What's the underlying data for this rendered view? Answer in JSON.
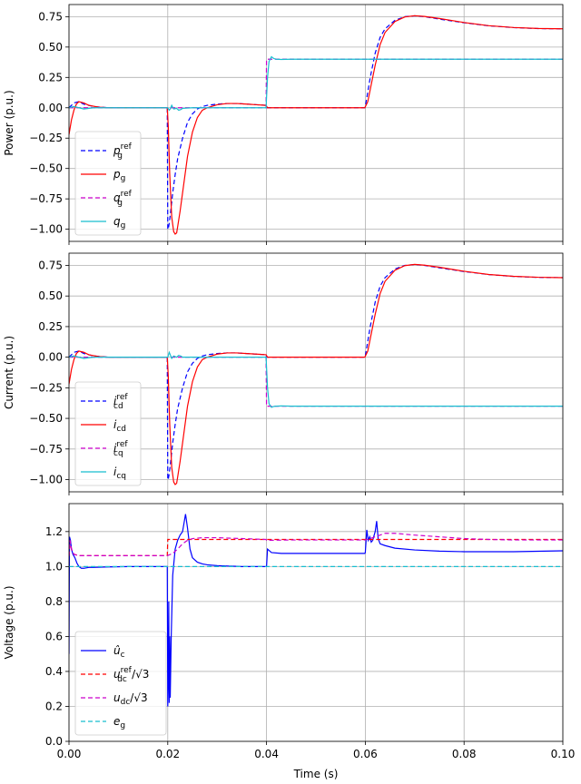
{
  "chart_data": [
    {
      "type": "line",
      "ylabel": "Power (p.u.)",
      "xlabel": "",
      "xlim": [
        0,
        0.1
      ],
      "ylim": [
        -1.1,
        0.85
      ],
      "xticks": [
        0,
        0.02,
        0.04,
        0.06,
        0.08,
        0.1
      ],
      "xtick_labels": [
        "",
        "",
        "",
        "",
        "",
        ""
      ],
      "yticks": [
        -1.0,
        -0.75,
        -0.5,
        -0.25,
        0.0,
        0.25,
        0.5,
        0.75
      ],
      "ytick_labels": [
        "−1.00",
        "−0.75",
        "−0.50",
        "−0.25",
        "0.00",
        "0.25",
        "0.50",
        "0.75"
      ],
      "grid": true,
      "legend_position": "lower-left",
      "series": [
        {
          "name": "p_g^ref",
          "label_main": "p",
          "label_sub": "g",
          "label_sup": "ref",
          "color": "#0000ff",
          "dash": "dashed",
          "x": [
            0,
            0.001,
            0.002,
            0.003,
            0.005,
            0.008,
            0.012,
            0.016,
            0.0199,
            0.02,
            0.0201,
            0.0203,
            0.0206,
            0.021,
            0.0215,
            0.022,
            0.023,
            0.024,
            0.025,
            0.026,
            0.027,
            0.028,
            0.03,
            0.032,
            0.034,
            0.036,
            0.038,
            0.0399,
            0.04,
            0.0401,
            0.045,
            0.05,
            0.055,
            0.0599,
            0.06,
            0.061,
            0.062,
            0.063,
            0.064,
            0.066,
            0.068,
            0.07,
            0.072,
            0.075,
            0.08,
            0.085,
            0.09,
            0.095,
            0.1
          ],
          "y": [
            0.0,
            0.04,
            0.05,
            0.03,
            0.01,
            0.0,
            0.0,
            0.0,
            0.0,
            -1.0,
            -1.0,
            -0.95,
            -0.85,
            -0.7,
            -0.55,
            -0.42,
            -0.25,
            -0.12,
            -0.05,
            -0.01,
            0.01,
            0.02,
            0.03,
            0.035,
            0.035,
            0.03,
            0.025,
            0.02,
            0.0,
            0.0,
            0.0,
            0.0,
            0.0,
            0.0,
            0.01,
            0.25,
            0.45,
            0.58,
            0.65,
            0.72,
            0.75,
            0.757,
            0.75,
            0.73,
            0.7,
            0.675,
            0.66,
            0.652,
            0.65
          ]
        },
        {
          "name": "p_g",
          "label_main": "p",
          "label_sub": "g",
          "label_sup": "",
          "color": "#ff0000",
          "dash": "solid",
          "x": [
            0,
            0.0005,
            0.001,
            0.0015,
            0.002,
            0.003,
            0.004,
            0.006,
            0.008,
            0.012,
            0.016,
            0.0199,
            0.0201,
            0.0204,
            0.0208,
            0.0212,
            0.0215,
            0.0218,
            0.022,
            0.0225,
            0.023,
            0.024,
            0.025,
            0.026,
            0.027,
            0.028,
            0.03,
            0.032,
            0.034,
            0.036,
            0.038,
            0.0399,
            0.0402,
            0.045,
            0.05,
            0.055,
            0.0599,
            0.0605,
            0.061,
            0.062,
            0.063,
            0.064,
            0.066,
            0.068,
            0.07,
            0.072,
            0.075,
            0.08,
            0.085,
            0.09,
            0.095,
            0.1
          ],
          "y": [
            -0.22,
            -0.1,
            -0.02,
            0.03,
            0.05,
            0.04,
            0.02,
            0.005,
            0.0,
            0.0,
            0.0,
            0.0,
            -0.15,
            -0.55,
            -0.9,
            -1.02,
            -1.04,
            -1.03,
            -0.98,
            -0.85,
            -0.7,
            -0.4,
            -0.2,
            -0.08,
            -0.02,
            0.0,
            0.025,
            0.035,
            0.035,
            0.03,
            0.025,
            0.02,
            0.0,
            0.0,
            0.0,
            0.0,
            0.0,
            0.05,
            0.15,
            0.35,
            0.52,
            0.62,
            0.71,
            0.748,
            0.758,
            0.752,
            0.735,
            0.702,
            0.676,
            0.661,
            0.653,
            0.65
          ]
        },
        {
          "name": "q_g^ref",
          "label_main": "q",
          "label_sub": "g",
          "label_sup": "ref",
          "color": "#cc00cc",
          "dash": "dashed",
          "x": [
            0,
            0.0399,
            0.04,
            0.1
          ],
          "y": [
            0.0,
            0.0,
            0.4,
            0.4
          ]
        },
        {
          "name": "q_g",
          "label_main": "q",
          "label_sub": "g",
          "label_sup": "",
          "color": "#17becf",
          "dash": "solid",
          "x": [
            0,
            0.001,
            0.002,
            0.003,
            0.005,
            0.008,
            0.0199,
            0.02,
            0.0203,
            0.0205,
            0.0208,
            0.0212,
            0.0218,
            0.0222,
            0.0226,
            0.023,
            0.025,
            0.0399,
            0.0402,
            0.0405,
            0.041,
            0.0415,
            0.042,
            0.043,
            0.045,
            0.05,
            0.06,
            0.07,
            0.08,
            0.09,
            0.1
          ],
          "y": [
            0.0,
            0.01,
            0.0,
            -0.01,
            0.0,
            0.0,
            0.0,
            0.0,
            -0.02,
            -0.01,
            0.02,
            -0.01,
            -0.005,
            -0.02,
            -0.015,
            -0.005,
            0.0,
            0.0,
            0.25,
            0.38,
            0.42,
            0.405,
            0.4,
            0.398,
            0.4,
            0.4,
            0.4,
            0.4,
            0.4,
            0.4,
            0.4
          ]
        }
      ]
    },
    {
      "type": "line",
      "ylabel": "Current (p.u.)",
      "xlabel": "",
      "xlim": [
        0,
        0.1
      ],
      "ylim": [
        -1.1,
        0.85
      ],
      "xticks": [
        0,
        0.02,
        0.04,
        0.06,
        0.08,
        0.1
      ],
      "xtick_labels": [
        "",
        "",
        "",
        "",
        "",
        ""
      ],
      "yticks": [
        -1.0,
        -0.75,
        -0.5,
        -0.25,
        0.0,
        0.25,
        0.5,
        0.75
      ],
      "ytick_labels": [
        "−1.00",
        "−0.75",
        "−0.50",
        "−0.25",
        "0.00",
        "0.25",
        "0.50",
        "0.75"
      ],
      "grid": true,
      "legend_position": "lower-left",
      "series": [
        {
          "name": "i_cd^ref",
          "label_main": "i",
          "label_sub": "cd",
          "label_sup": "ref",
          "color": "#0000ff",
          "dash": "dashed",
          "x": [
            0,
            0.001,
            0.002,
            0.003,
            0.005,
            0.008,
            0.012,
            0.016,
            0.0199,
            0.02,
            0.0201,
            0.0203,
            0.0206,
            0.021,
            0.0215,
            0.022,
            0.023,
            0.024,
            0.025,
            0.026,
            0.027,
            0.028,
            0.03,
            0.032,
            0.034,
            0.036,
            0.038,
            0.0399,
            0.04,
            0.0401,
            0.045,
            0.05,
            0.055,
            0.0599,
            0.06,
            0.061,
            0.062,
            0.063,
            0.064,
            0.066,
            0.068,
            0.07,
            0.072,
            0.075,
            0.08,
            0.085,
            0.09,
            0.095,
            0.1
          ],
          "y": [
            0.0,
            0.04,
            0.05,
            0.03,
            0.01,
            0.0,
            0.0,
            0.0,
            0.0,
            -1.0,
            -1.0,
            -0.95,
            -0.85,
            -0.7,
            -0.55,
            -0.42,
            -0.25,
            -0.12,
            -0.05,
            -0.01,
            0.01,
            0.02,
            0.03,
            0.035,
            0.035,
            0.03,
            0.025,
            0.02,
            0.0,
            0.0,
            0.0,
            0.0,
            0.0,
            0.0,
            0.01,
            0.25,
            0.45,
            0.58,
            0.65,
            0.72,
            0.75,
            0.757,
            0.75,
            0.73,
            0.7,
            0.675,
            0.66,
            0.652,
            0.65
          ]
        },
        {
          "name": "i_cd",
          "label_main": "i",
          "label_sub": "cd",
          "label_sup": "",
          "color": "#ff0000",
          "dash": "solid",
          "x": [
            0,
            0.0005,
            0.001,
            0.0015,
            0.002,
            0.003,
            0.004,
            0.006,
            0.008,
            0.012,
            0.016,
            0.0199,
            0.0201,
            0.0204,
            0.0208,
            0.0212,
            0.0215,
            0.0218,
            0.022,
            0.0225,
            0.023,
            0.024,
            0.025,
            0.026,
            0.027,
            0.028,
            0.03,
            0.032,
            0.034,
            0.036,
            0.038,
            0.0399,
            0.0402,
            0.045,
            0.05,
            0.055,
            0.0599,
            0.0605,
            0.061,
            0.062,
            0.063,
            0.064,
            0.066,
            0.068,
            0.07,
            0.072,
            0.075,
            0.08,
            0.085,
            0.09,
            0.095,
            0.1
          ],
          "y": [
            -0.22,
            -0.1,
            -0.02,
            0.03,
            0.05,
            0.04,
            0.02,
            0.005,
            0.0,
            0.0,
            0.0,
            0.0,
            -0.15,
            -0.55,
            -0.9,
            -1.02,
            -1.04,
            -1.03,
            -0.98,
            -0.85,
            -0.7,
            -0.4,
            -0.2,
            -0.08,
            -0.02,
            0.0,
            0.025,
            0.035,
            0.035,
            0.03,
            0.025,
            0.02,
            0.0,
            0.0,
            0.0,
            0.0,
            0.0,
            0.05,
            0.15,
            0.35,
            0.52,
            0.62,
            0.71,
            0.748,
            0.758,
            0.752,
            0.735,
            0.702,
            0.676,
            0.661,
            0.653,
            0.65
          ]
        },
        {
          "name": "i_cq^ref",
          "label_main": "i",
          "label_sub": "cq",
          "label_sup": "ref",
          "color": "#cc00cc",
          "dash": "dashed",
          "x": [
            0,
            0.0399,
            0.04,
            0.1
          ],
          "y": [
            0.0,
            0.0,
            -0.4,
            -0.4
          ]
        },
        {
          "name": "i_cq",
          "label_main": "i",
          "label_sub": "cq",
          "label_sup": "",
          "color": "#17becf",
          "dash": "solid",
          "x": [
            0,
            0.001,
            0.002,
            0.003,
            0.005,
            0.008,
            0.0199,
            0.02,
            0.0203,
            0.0205,
            0.0208,
            0.0212,
            0.0218,
            0.0222,
            0.0226,
            0.023,
            0.025,
            0.0399,
            0.0402,
            0.0405,
            0.041,
            0.0415,
            0.042,
            0.043,
            0.045,
            0.05,
            0.06,
            0.07,
            0.08,
            0.09,
            0.1
          ],
          "y": [
            0.0,
            0.01,
            0.0,
            -0.01,
            0.0,
            0.0,
            0.0,
            0.0,
            0.04,
            0.02,
            -0.01,
            0.01,
            0.0,
            0.015,
            0.01,
            0.0,
            0.0,
            0.0,
            -0.25,
            -0.38,
            -0.41,
            -0.402,
            -0.4,
            -0.398,
            -0.4,
            -0.4,
            -0.4,
            -0.4,
            -0.4,
            -0.4,
            -0.4
          ]
        }
      ]
    },
    {
      "type": "line",
      "ylabel": "Voltage (p.u.)",
      "xlabel": "Time (s)",
      "xlim": [
        0,
        0.1
      ],
      "ylim": [
        0.0,
        1.36
      ],
      "xticks": [
        0,
        0.02,
        0.04,
        0.06,
        0.08,
        0.1
      ],
      "xtick_labels": [
        "0.00",
        "0.02",
        "0.04",
        "0.06",
        "0.08",
        "0.10"
      ],
      "yticks": [
        0.0,
        0.2,
        0.4,
        0.6,
        0.8,
        1.0,
        1.2
      ],
      "ytick_labels": [
        "0.0",
        "0.2",
        "0.4",
        "0.6",
        "0.8",
        "1.0",
        "1.2"
      ],
      "grid": true,
      "legend_position": "lower-left",
      "series": [
        {
          "name": "û_c",
          "label_main": "û",
          "label_sub": "c",
          "label_sup": "",
          "label_suffix": "",
          "color": "#0000ff",
          "dash": "solid",
          "x": [
            0,
            0.0001,
            0.0003,
            0.0005,
            0.0008,
            0.0012,
            0.0016,
            0.002,
            0.0025,
            0.003,
            0.004,
            0.005,
            0.008,
            0.012,
            0.016,
            0.0199,
            0.02,
            0.0201,
            0.0202,
            0.0203,
            0.0204,
            0.0205,
            0.0207,
            0.021,
            0.0215,
            0.022,
            0.0225,
            0.023,
            0.0233,
            0.0236,
            0.024,
            0.0245,
            0.025,
            0.026,
            0.027,
            0.028,
            0.03,
            0.035,
            0.0399,
            0.04,
            0.0402,
            0.041,
            0.043,
            0.045,
            0.05,
            0.055,
            0.0599,
            0.06,
            0.0603,
            0.0606,
            0.0609,
            0.0612,
            0.0615,
            0.062,
            0.0623,
            0.0626,
            0.063,
            0.064,
            0.066,
            0.07,
            0.075,
            0.08,
            0.09,
            0.1
          ],
          "y": [
            0.5,
            1.17,
            1.15,
            1.1,
            1.07,
            1.05,
            1.02,
            1.0,
            0.99,
            0.99,
            0.995,
            0.995,
            0.998,
            1.0,
            1.0,
            1.0,
            0.2,
            0.35,
            0.8,
            0.22,
            0.6,
            0.25,
            0.6,
            0.95,
            1.1,
            1.15,
            1.18,
            1.2,
            1.25,
            1.3,
            1.22,
            1.1,
            1.05,
            1.025,
            1.015,
            1.01,
            1.005,
            1.0,
            1.0,
            1.0,
            1.1,
            1.08,
            1.075,
            1.075,
            1.075,
            1.075,
            1.075,
            1.08,
            1.21,
            1.15,
            1.17,
            1.14,
            1.15,
            1.2,
            1.26,
            1.16,
            1.13,
            1.12,
            1.105,
            1.095,
            1.088,
            1.085,
            1.085,
            1.09
          ]
        },
        {
          "name": "u_dc^ref/√3",
          "label_main": "u",
          "label_sub": "dc",
          "label_sup": "ref",
          "label_suffix": "/√3",
          "color": "#ff0000",
          "dash": "dashed",
          "x": [
            0,
            0.0002,
            0.0005,
            0.001,
            0.002,
            0.0199,
            0.02,
            0.1
          ],
          "y": [
            1.06,
            1.15,
            1.1,
            1.07,
            1.062,
            1.062,
            1.155,
            1.155
          ]
        },
        {
          "name": "u_dc/√3",
          "label_main": "u",
          "label_sub": "dc",
          "label_sup": "",
          "label_suffix": "/√3",
          "color": "#cc00cc",
          "dash": "dashed",
          "x": [
            0,
            0.0002,
            0.0005,
            0.001,
            0.002,
            0.0199,
            0.021,
            0.022,
            0.023,
            0.024,
            0.025,
            0.027,
            0.03,
            0.035,
            0.0399,
            0.04,
            0.045,
            0.05,
            0.055,
            0.06,
            0.062,
            0.064,
            0.066,
            0.068,
            0.07,
            0.075,
            0.08,
            0.085,
            0.09,
            0.1
          ],
          "y": [
            1.06,
            1.15,
            1.1,
            1.07,
            1.062,
            1.062,
            1.075,
            1.1,
            1.13,
            1.15,
            1.16,
            1.165,
            1.165,
            1.16,
            1.155,
            1.15,
            1.152,
            1.152,
            1.152,
            1.152,
            1.17,
            1.19,
            1.19,
            1.185,
            1.18,
            1.17,
            1.16,
            1.155,
            1.152,
            1.152
          ]
        },
        {
          "name": "e_g",
          "label_main": "e",
          "label_sub": "g",
          "label_sup": "",
          "label_suffix": "",
          "color": "#17becf",
          "dash": "dashed",
          "x": [
            0,
            0.1
          ],
          "y": [
            1.0,
            1.0
          ]
        }
      ]
    }
  ]
}
